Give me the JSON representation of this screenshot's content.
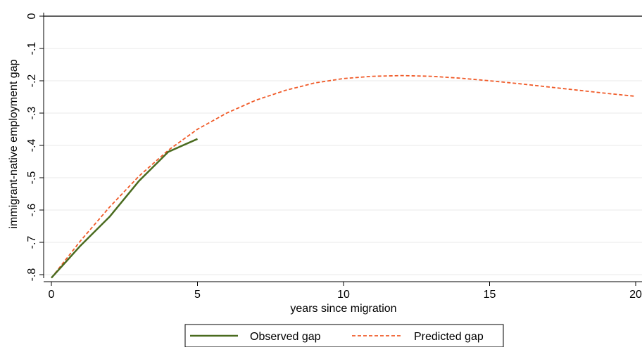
{
  "chart_data": {
    "type": "line",
    "xlabel": "years since migration",
    "ylabel": "immigrant-native employment gap",
    "xlim": [
      0,
      20
    ],
    "ylim": [
      -0.8,
      0
    ],
    "xticks": [
      0,
      5,
      10,
      15,
      20
    ],
    "yticks": [
      0,
      -0.1,
      -0.2,
      -0.3,
      -0.4,
      -0.5,
      -0.6,
      -0.7,
      -0.8
    ],
    "xtick_labels": [
      "0",
      "5",
      "10",
      "15",
      "20"
    ],
    "ytick_labels": [
      "0",
      "-.1",
      "-.2",
      "-.3",
      "-.4",
      "-.5",
      "-.6",
      "-.7",
      "-.8"
    ],
    "grid": true,
    "reference_line_y": 0,
    "legend_position": "bottom",
    "series": [
      {
        "name": "Observed gap",
        "style": "solid",
        "color": "#4a6b1f",
        "x": [
          0,
          1,
          2,
          3,
          4,
          5
        ],
        "y": [
          -0.81,
          -0.71,
          -0.62,
          -0.51,
          -0.42,
          -0.38
        ]
      },
      {
        "name": "Predicted gap",
        "style": "dashed",
        "color": "#f05a28",
        "x": [
          0,
          1,
          2,
          3,
          4,
          5,
          6,
          7,
          8,
          9,
          10,
          11,
          12,
          13,
          14,
          15,
          16,
          17,
          18,
          19,
          20
        ],
        "y": [
          -0.81,
          -0.695,
          -0.59,
          -0.495,
          -0.415,
          -0.35,
          -0.3,
          -0.26,
          -0.23,
          -0.207,
          -0.193,
          -0.186,
          -0.184,
          -0.186,
          -0.192,
          -0.2,
          -0.209,
          -0.219,
          -0.229,
          -0.239,
          -0.248
        ]
      }
    ]
  }
}
